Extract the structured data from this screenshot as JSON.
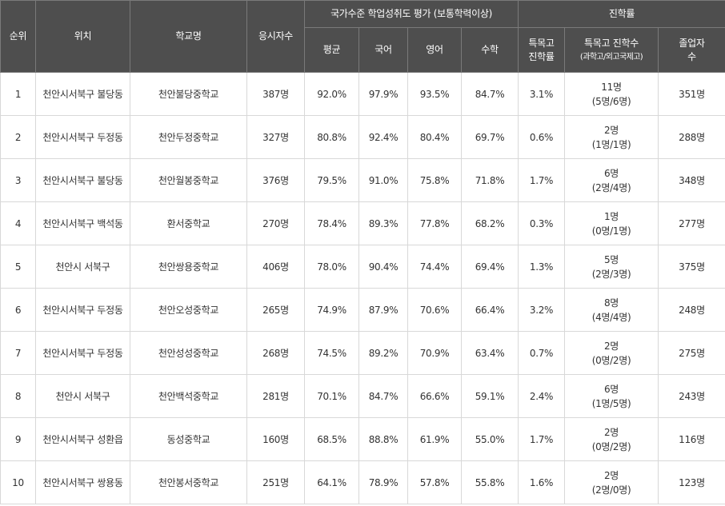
{
  "headers": {
    "rank": "순위",
    "location": "위치",
    "school": "학교명",
    "applicants": "응시자수",
    "assessment_group": "국가수준 학업성취도 평가 (보통학력이상)",
    "average": "평균",
    "korean": "국어",
    "english": "영어",
    "math": "수학",
    "advancement_group": "진학률",
    "special_rate_1": "특목고",
    "special_rate_2": "진학률",
    "special_count_1": "특목고 진학수",
    "special_count_2": "(과학고/외고국제고)",
    "graduates_1": "졸업자",
    "graduates_2": "수"
  },
  "rows": [
    {
      "rank": "1",
      "location": "천안시서북구 불당동",
      "school": "천안불당중학교",
      "applicants": "387명",
      "average": "92.0%",
      "korean": "97.9%",
      "english": "93.5%",
      "math": "84.7%",
      "special_rate": "3.1%",
      "special_count": "11명",
      "special_breakdown": "(5명/6명)",
      "graduates": "351명"
    },
    {
      "rank": "2",
      "location": "천안시서북구 두정동",
      "school": "천안두정중학교",
      "applicants": "327명",
      "average": "80.8%",
      "korean": "92.4%",
      "english": "80.4%",
      "math": "69.7%",
      "special_rate": "0.6%",
      "special_count": "2명",
      "special_breakdown": "(1명/1명)",
      "graduates": "288명"
    },
    {
      "rank": "3",
      "location": "천안시서북구 불당동",
      "school": "천안월봉중학교",
      "applicants": "376명",
      "average": "79.5%",
      "korean": "91.0%",
      "english": "75.8%",
      "math": "71.8%",
      "special_rate": "1.7%",
      "special_count": "6명",
      "special_breakdown": "(2명/4명)",
      "graduates": "348명"
    },
    {
      "rank": "4",
      "location": "천안시서북구 백석동",
      "school": "환서중학교",
      "applicants": "270명",
      "average": "78.4%",
      "korean": "89.3%",
      "english": "77.8%",
      "math": "68.2%",
      "special_rate": "0.3%",
      "special_count": "1명",
      "special_breakdown": "(0명/1명)",
      "graduates": "277명"
    },
    {
      "rank": "5",
      "location": "천안시 서북구",
      "school": "천안쌍용중학교",
      "applicants": "406명",
      "average": "78.0%",
      "korean": "90.4%",
      "english": "74.4%",
      "math": "69.4%",
      "special_rate": "1.3%",
      "special_count": "5명",
      "special_breakdown": "(2명/3명)",
      "graduates": "375명"
    },
    {
      "rank": "6",
      "location": "천안시서북구 두정동",
      "school": "천안오성중학교",
      "applicants": "265명",
      "average": "74.9%",
      "korean": "87.9%",
      "english": "70.6%",
      "math": "66.4%",
      "special_rate": "3.2%",
      "special_count": "8명",
      "special_breakdown": "(4명/4명)",
      "graduates": "248명"
    },
    {
      "rank": "7",
      "location": "천안시서북구 두정동",
      "school": "천안성성중학교",
      "applicants": "268명",
      "average": "74.5%",
      "korean": "89.2%",
      "english": "70.9%",
      "math": "63.4%",
      "special_rate": "0.7%",
      "special_count": "2명",
      "special_breakdown": "(0명/2명)",
      "graduates": "275명"
    },
    {
      "rank": "8",
      "location": "천안시 서북구",
      "school": "천안백석중학교",
      "applicants": "281명",
      "average": "70.1%",
      "korean": "84.7%",
      "english": "66.6%",
      "math": "59.1%",
      "special_rate": "2.4%",
      "special_count": "6명",
      "special_breakdown": "(1명/5명)",
      "graduates": "243명"
    },
    {
      "rank": "9",
      "location": "천안시서북구 성환읍",
      "school": "동성중학교",
      "applicants": "160명",
      "average": "68.5%",
      "korean": "88.8%",
      "english": "61.9%",
      "math": "55.0%",
      "special_rate": "1.7%",
      "special_count": "2명",
      "special_breakdown": "(0명/2명)",
      "graduates": "116명"
    },
    {
      "rank": "10",
      "location": "천안시서북구 쌍용동",
      "school": "천안봉서중학교",
      "applicants": "251명",
      "average": "64.1%",
      "korean": "78.9%",
      "english": "57.8%",
      "math": "55.8%",
      "special_rate": "1.6%",
      "special_count": "2명",
      "special_breakdown": "(2명/0명)",
      "graduates": "123명"
    }
  ]
}
